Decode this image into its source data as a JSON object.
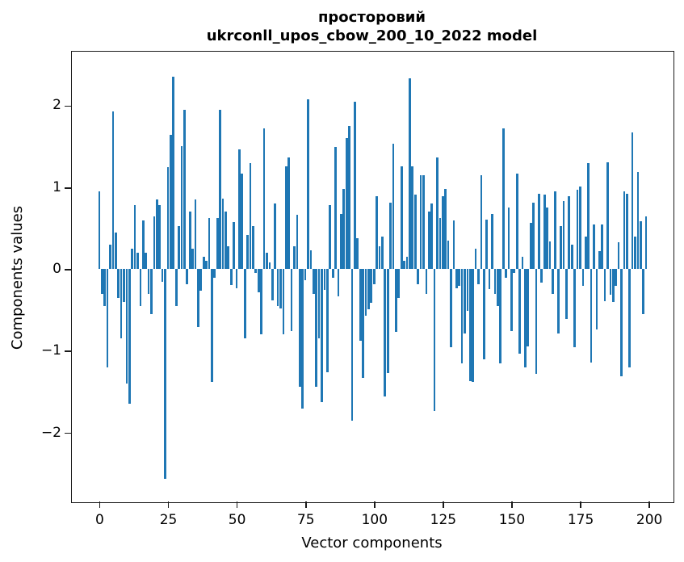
{
  "title": {
    "line1": "просторовий",
    "line2": "ukrconll_upos_cbow_200_10_2022 model"
  },
  "chart_data": {
    "type": "bar",
    "title": "просторовий\nukrconll_upos_cbow_200_10_2022 model",
    "xlabel": "Vector components",
    "ylabel": "Components values",
    "legend": null,
    "grid": false,
    "bar_color": "#1f77b4",
    "spine_color": "#1a1a1a",
    "n_components": 200,
    "x_ticks": [
      0,
      25,
      50,
      75,
      100,
      125,
      150,
      175,
      200
    ],
    "y_ticks": [
      2,
      1,
      0,
      -1,
      -2
    ],
    "xlim": [
      -9.95,
      208.95
    ],
    "ylim": [
      -2.85,
      2.66
    ],
    "values": [
      0.95,
      -0.3,
      -0.45,
      -1.2,
      0.3,
      1.93,
      0.45,
      -0.35,
      -0.85,
      -0.4,
      -1.4,
      -1.65,
      0.25,
      0.78,
      0.2,
      -0.45,
      0.6,
      0.2,
      -0.3,
      -0.55,
      0.65,
      0.85,
      0.78,
      -0.15,
      -2.56,
      1.25,
      1.64,
      2.35,
      -0.45,
      0.53,
      1.5,
      1.95,
      -0.18,
      0.7,
      0.25,
      0.85,
      -0.71,
      -0.26,
      0.15,
      0.1,
      0.63,
      -1.38,
      -0.1,
      0.63,
      1.95,
      0.86,
      0.7,
      0.28,
      -0.19,
      0.58,
      -0.23,
      1.47,
      1.17,
      -0.85,
      0.42,
      1.3,
      0.53,
      -0.05,
      -0.28,
      -0.8,
      1.72,
      0.2,
      0.08,
      -0.38,
      0.8,
      -0.45,
      -0.48,
      -0.8,
      1.26,
      1.37,
      -0.76,
      0.28,
      0.67,
      -1.44,
      -1.7,
      -0.13,
      2.08,
      0.23,
      -0.3,
      -1.44,
      -0.85,
      -1.63,
      -0.25,
      -1.26,
      0.78,
      -0.1,
      1.49,
      -0.33,
      0.68,
      0.98,
      1.6,
      1.75,
      -1.85,
      2.05,
      0.38,
      -0.88,
      -1.33,
      -0.57,
      -0.49,
      -0.41,
      -0.18,
      0.89,
      0.28,
      0.4,
      -1.56,
      -1.27,
      0.81,
      1.53,
      -0.77,
      -0.35,
      1.26,
      0.1,
      0.15,
      2.33,
      1.26,
      0.91,
      -0.18,
      1.15,
      1.15,
      -0.3,
      0.7,
      0.8,
      -1.73,
      1.37,
      0.63,
      0.89,
      0.98,
      0.35,
      -0.95,
      0.6,
      -0.23,
      -0.2,
      -1.15,
      -0.79,
      -0.51,
      -1.37,
      -1.38,
      0.25,
      -0.18,
      1.15,
      -1.1,
      0.61,
      -0.24,
      0.68,
      -0.3,
      -0.45,
      -1.15,
      1.72,
      -0.1,
      0.75,
      -0.76,
      -0.05,
      1.17,
      -1.03,
      0.15,
      -1.2,
      -0.94,
      0.57,
      0.81,
      -1.28,
      0.92,
      -0.16,
      0.91,
      0.75,
      0.34,
      -0.3,
      0.95,
      -0.79,
      0.53,
      0.83,
      -0.61,
      0.89,
      0.3,
      -0.95,
      0.97,
      1.01,
      -0.2,
      0.4,
      1.3,
      -1.14,
      0.55,
      -0.74,
      0.22,
      0.55,
      -0.39,
      1.31,
      -0.31,
      -0.4,
      -0.2,
      0.33,
      -1.31,
      0.95,
      0.92,
      -1.2,
      1.67,
      0.4,
      1.19,
      0.59,
      -0.55,
      0.65
    ]
  }
}
